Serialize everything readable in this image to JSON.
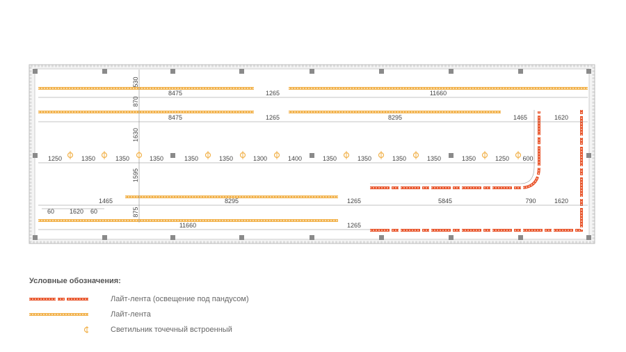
{
  "plan": {
    "dimensions_row1": [
      "8475",
      "1265",
      "11660"
    ],
    "dimensions_row2": [
      "8475",
      "1265",
      "8295",
      "1465",
      "1620"
    ],
    "dimensions_row3": [
      "1250",
      "1350",
      "1350",
      "1350",
      "1350",
      "1350",
      "1300",
      "1400",
      "1350",
      "1350",
      "1350",
      "1350",
      "1350",
      "1250",
      "600"
    ],
    "dimensions_row4": [
      "1465",
      "8295",
      "1265",
      "5845",
      "790",
      "1620"
    ],
    "dimensions_row5": [
      "11660",
      "1265"
    ],
    "dimensions_small": [
      "60",
      "1620",
      "60"
    ],
    "dimensions_vertical": [
      "530",
      "870",
      "1630",
      "1595",
      "875"
    ]
  },
  "legend": {
    "title": "Условные обозначения:",
    "items": [
      {
        "label": "Лайт-лента (освещение под пандусом)",
        "color": "#e8542a"
      },
      {
        "label": "Лайт-лента",
        "color": "#f2b24b"
      },
      {
        "label": "Светильник точечный встроенный",
        "color": "#f2b24b"
      }
    ]
  },
  "colors": {
    "ramp_strip": "#e8542a",
    "strip": "#f2b24b",
    "wall": "#bbbbbb",
    "column": "#8a8a8a"
  }
}
